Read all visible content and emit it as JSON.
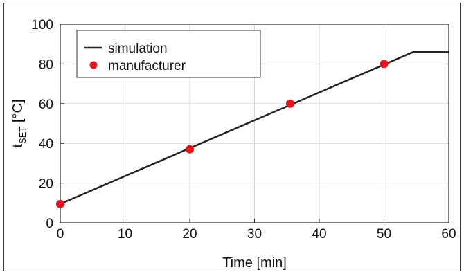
{
  "chart_data": {
    "type": "line",
    "xlabel": "Time [min]",
    "ylabel": {
      "main": "t",
      "sub": "SET",
      "unit": " [°C]"
    },
    "xlim": [
      0,
      60
    ],
    "ylim": [
      0,
      100
    ],
    "xticks": [
      0,
      10,
      20,
      30,
      40,
      50,
      60
    ],
    "yticks": [
      0,
      20,
      40,
      60,
      80,
      100
    ],
    "grid": true,
    "legend_position": "top-left",
    "series": [
      {
        "name": "simulation",
        "kind": "line",
        "color": "#222222",
        "x": [
          0,
          54.5,
          60
        ],
        "y": [
          9.5,
          86,
          86
        ]
      },
      {
        "name": "manufacturer",
        "kind": "scatter",
        "color": "#e8141b",
        "x": [
          0,
          20,
          35.5,
          50
        ],
        "y": [
          9.5,
          37,
          60,
          80
        ]
      }
    ]
  }
}
